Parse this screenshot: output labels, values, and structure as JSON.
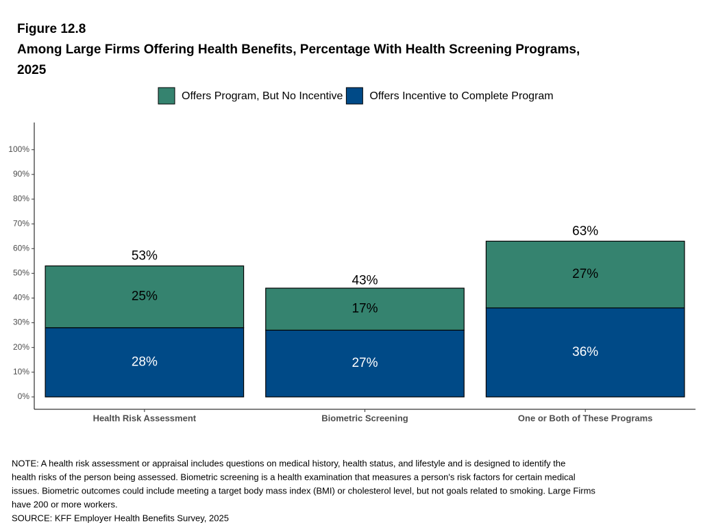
{
  "chart_data": {
    "type": "stacked_bar",
    "title": "Figure 12.8",
    "subtitle": [
      "Among Large Firms Offering Health Benefits, Percentage With Health Screening Programs,",
      "2025"
    ],
    "categories": [
      "Health Risk Assessment",
      "Biometric Screening",
      "One or Both of These Programs"
    ],
    "series": [
      {
        "name": "Offers Program, But No Incentive",
        "color": "#35836f",
        "values": [
          25,
          17,
          27
        ],
        "value_labels": [
          "25%",
          "17%",
          "27%"
        ]
      },
      {
        "name": "Offers Incentive to Complete Program",
        "color": "#004a87",
        "values": [
          28,
          27,
          36
        ],
        "value_labels": [
          "28%",
          "27%",
          "36%"
        ]
      }
    ],
    "totals": {
      "values": [
        53,
        43,
        63
      ],
      "value_labels": [
        "53%",
        "43%",
        "63%"
      ]
    },
    "ylim": [
      -5,
      111
    ],
    "yticks": [
      {
        "value": 0,
        "label": "0%"
      },
      {
        "value": 10,
        "label": "10%"
      },
      {
        "value": 20,
        "label": "20%"
      },
      {
        "value": 30,
        "label": "30%"
      },
      {
        "value": 40,
        "label": "40%"
      },
      {
        "value": 50,
        "label": "50%"
      },
      {
        "value": 60,
        "label": "60%"
      },
      {
        "value": 70,
        "label": "70%"
      },
      {
        "value": 80,
        "label": "80%"
      },
      {
        "value": 90,
        "label": "90%"
      },
      {
        "value": 100,
        "label": "100%"
      }
    ],
    "grid": false,
    "legend": "top",
    "note": [
      "NOTE: A health risk assessment or appraisal includes questions on medical history, health status, and lifestyle and is designed to identify the",
      "health risks of the person being assessed.  Biometric screening is a health examination that measures a person's risk factors for certain medical",
      "issues. Biometric outcomes could include meeting a target body mass index (BMI) or cholesterol level, but not goals related to smoking.  Large Firms",
      "have 200 or more workers."
    ],
    "source": "SOURCE: KFF Employer Health Benefits Survey, 2025"
  }
}
